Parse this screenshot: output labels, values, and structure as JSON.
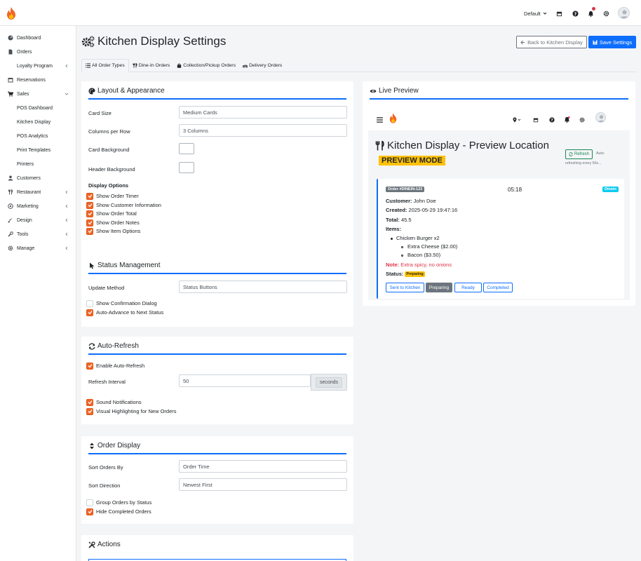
{
  "topbar": {
    "location_label": "Default",
    "icons": [
      "store-icon",
      "help-icon",
      "bell-icon",
      "gear-icon"
    ]
  },
  "sidebar": {
    "items": [
      {
        "label": "Dashboard",
        "icon": "gauge-icon"
      },
      {
        "label": "Orders",
        "icon": "file-icon"
      },
      {
        "label": "Loyalty Program",
        "icon": ""
      },
      {
        "label": "Reservations",
        "icon": "calendar-icon"
      },
      {
        "label": "Sales",
        "icon": "cart-icon"
      },
      {
        "label": "POS Dashboard",
        "icon": ""
      },
      {
        "label": "Kitchen Display",
        "icon": ""
      },
      {
        "label": "POS Analytics",
        "icon": ""
      },
      {
        "label": "Print Templates",
        "icon": ""
      },
      {
        "label": "Printers",
        "icon": ""
      },
      {
        "label": "Customers",
        "icon": "users-icon"
      },
      {
        "label": "Restaurant",
        "icon": "utensils-icon"
      },
      {
        "label": "Marketing",
        "icon": "bullhorn-icon"
      },
      {
        "label": "Design",
        "icon": "brush-icon"
      },
      {
        "label": "Tools",
        "icon": "wrench-icon"
      },
      {
        "label": "Manage",
        "icon": "gear-icon"
      }
    ]
  },
  "page": {
    "title": "Kitchen Display Settings",
    "back_label": "Back to Kitchen Display",
    "save_label": "Save Settings"
  },
  "tabs": [
    {
      "label": "All Order Types",
      "icon": "list-icon"
    },
    {
      "label": "Dine-In Orders",
      "icon": "utensils-icon"
    },
    {
      "label": "Collection/Pickup Orders",
      "icon": "bag-icon"
    },
    {
      "label": "Delivery Orders",
      "icon": "motorcycle-icon"
    }
  ],
  "layout": {
    "title": "Layout & Appearance",
    "card_size_label": "Card Size",
    "card_size_value": "Medium Cards",
    "columns_label": "Columns per Row",
    "columns_value": "3 Columns",
    "card_bg_label": "Card Background",
    "header_bg_label": "Header Background",
    "display_options_label": "Display Options",
    "options": [
      {
        "label": "Show Order Timer",
        "checked": true
      },
      {
        "label": "Show Customer Information",
        "checked": true
      },
      {
        "label": "Show Order Total",
        "checked": true
      },
      {
        "label": "Show Order Notes",
        "checked": true
      },
      {
        "label": "Show Item Options",
        "checked": true
      }
    ]
  },
  "status": {
    "title": "Status Management",
    "method_label": "Update Method",
    "method_value": "Status Buttons",
    "options": [
      {
        "label": "Show Confirmation Dialog",
        "checked": false
      },
      {
        "label": "Auto-Advance to Next Status",
        "checked": true
      }
    ]
  },
  "refresh": {
    "title": "Auto-Refresh",
    "enable_label": "Enable Auto-Refresh",
    "interval_label": "Refresh Interval",
    "interval_value": "50",
    "interval_unit": "seconds",
    "options": [
      {
        "label": "Sound Notifications",
        "checked": true
      },
      {
        "label": "Visual Highlighting for New Orders",
        "checked": true
      }
    ]
  },
  "order_display": {
    "title": "Order Display",
    "sort_by_label": "Sort Orders By",
    "sort_by_value": "Order Time",
    "direction_label": "Sort Direction",
    "direction_value": "Newest First",
    "options": [
      {
        "label": "Group Orders by Status",
        "checked": false
      },
      {
        "label": "Hide Completed Orders",
        "checked": true
      }
    ]
  },
  "actions": {
    "title": "Actions"
  },
  "preview": {
    "title": "Live Preview",
    "kd_title": "Kitchen Display - Preview Location",
    "mode_label": "PREVIEW MODE",
    "refresh_label": "Refresh",
    "auto_line1": "Auto-",
    "auto_line2": "refreshing every 50s...",
    "order": {
      "id": "Order #DINEIN-123",
      "time": "05:18",
      "type": "Dinein",
      "customer_label": "Customer:",
      "customer": "John Doe",
      "created_label": "Created:",
      "created": "2025-05-29 19:47:16",
      "total_label": "Total:",
      "total": "45.5",
      "items_label": "Items:",
      "item": "Chicken Burger x2",
      "modifiers": [
        "Extra Cheese ($2.00)",
        "Bacon ($3.50)"
      ],
      "note_label": "Note:",
      "note": "Extra spicy, no onions",
      "status_label": "Status:",
      "status": "Preparing",
      "buttons": [
        "Sent to Kitchen",
        "Preparing",
        "Ready",
        "Completed"
      ]
    }
  }
}
